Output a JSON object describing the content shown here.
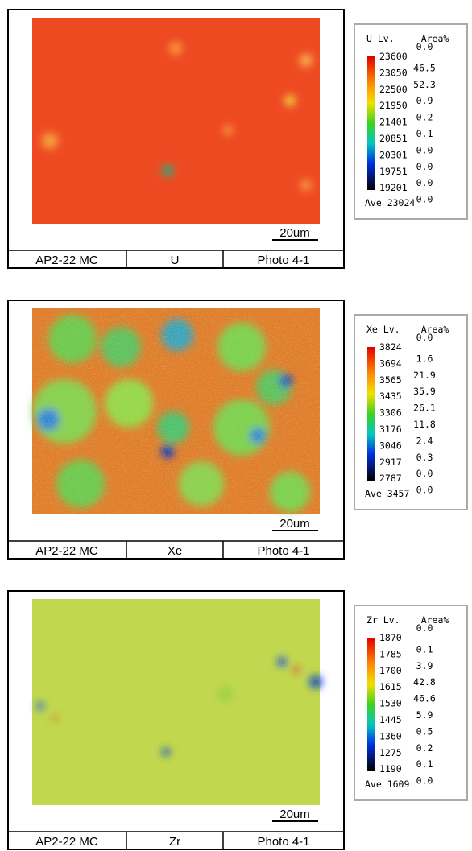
{
  "panels": [
    {
      "legend": {
        "title": "U Lv.",
        "unit": "Area%",
        "levels": [
          "23600",
          "23050",
          "22500",
          "21950",
          "21401",
          "20851",
          "20301",
          "19751",
          "19201"
        ],
        "areas": [
          "0.0",
          "46.5",
          "52.3",
          "0.9",
          "0.2",
          "0.1",
          "0.0",
          "0.0",
          "0.0",
          "0.0"
        ],
        "average": "Ave 23024"
      },
      "scale": "20um",
      "footer": [
        "AP2-22 MC",
        "U",
        "Photo 4-1"
      ]
    },
    {
      "legend": {
        "title": "Xe Lv.",
        "unit": "Area%",
        "levels": [
          "3824",
          "3694",
          "3565",
          "3435",
          "3306",
          "3176",
          "3046",
          "2917",
          "2787"
        ],
        "areas": [
          "0.0",
          "1.6",
          "21.9",
          "35.9",
          "26.1",
          "11.8",
          "2.4",
          "0.3",
          "0.0",
          "0.0"
        ],
        "average": "Ave 3457"
      },
      "scale": "20um",
      "footer": [
        "AP2-22 MC",
        "Xe",
        "Photo 4-1"
      ]
    },
    {
      "legend": {
        "title": "Zr Lv.",
        "unit": "Area%",
        "levels": [
          "1870",
          "1785",
          "1700",
          "1615",
          "1530",
          "1445",
          "1360",
          "1275",
          "1190"
        ],
        "areas": [
          "0.0",
          "0.1",
          "3.9",
          "42.8",
          "46.6",
          "5.9",
          "0.5",
          "0.2",
          "0.1",
          "0.0"
        ],
        "average": "Ave 1609"
      },
      "scale": "20um",
      "footer": [
        "AP2-22 MC",
        "Zr",
        "Photo 4-1"
      ]
    }
  ]
}
